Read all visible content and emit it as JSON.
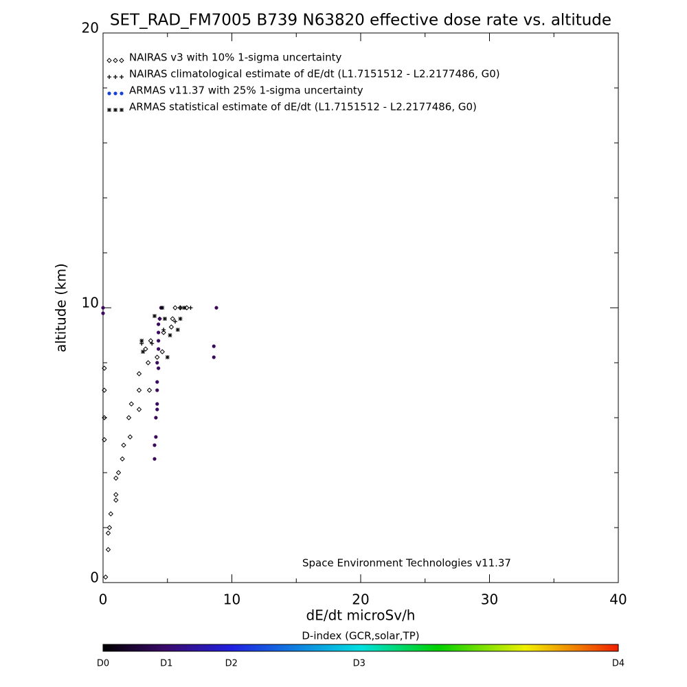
{
  "chart_data": {
    "type": "scatter",
    "title": "SET_RAD_FM7005  B739 N63820 effective dose rate vs. altitude",
    "x_label": "dE/dt microSv/h",
    "y_label": "altitude (km)",
    "annotation": "Space Environment Technologies v11.37",
    "xlim": [
      0,
      40
    ],
    "ylim": [
      0,
      20
    ],
    "xticks": [
      0,
      10,
      20,
      30,
      40
    ],
    "yticks": [
      0,
      10,
      20
    ],
    "xminorticks": [
      5,
      15,
      25,
      35
    ],
    "yminorticks": [
      2,
      4,
      6,
      8,
      12,
      14,
      16,
      18
    ],
    "series": [
      {
        "name": "NAIRAS v3 with 10% 1-sigma uncertainty",
        "marker": "diamond",
        "color": "#000000",
        "legend_color": "#000000",
        "x": [
          0.1,
          0.1,
          0.1,
          0.1,
          0.2,
          0.4,
          0.4,
          0.5,
          0.6,
          1.0,
          1.0,
          1.0,
          1.2,
          1.5,
          1.6,
          2.1,
          2.0,
          2.2,
          2.8,
          2.8,
          3.6,
          2.8,
          3.5,
          3.3,
          4.2,
          4.6,
          3.7,
          4.7,
          5.3,
          5.4,
          5.6,
          6.0,
          6.5
        ],
        "y": [
          7.8,
          7.0,
          6.0,
          5.2,
          0.2,
          1.2,
          1.8,
          2.0,
          2.5,
          3.0,
          3.2,
          3.8,
          4.0,
          4.5,
          5.0,
          5.3,
          6.0,
          6.5,
          6.3,
          7.0,
          7.0,
          7.6,
          8.0,
          8.5,
          8.2,
          8.4,
          8.8,
          9.1,
          9.3,
          9.6,
          10.0,
          10.0,
          10.0
        ]
      },
      {
        "name": "NAIRAS climatological estimate of dE/dt (L1.7151512 - L2.2177486, G0)",
        "marker": "plus",
        "color": "#000000",
        "legend_color": "#000000",
        "x": [
          3.0,
          3.8,
          4.4,
          4.7,
          5.6,
          6.0,
          6.8
        ],
        "y": [
          8.7,
          8.7,
          9.6,
          9.2,
          9.5,
          10.0,
          10.0
        ]
      },
      {
        "name": "ARMAS v11.37 with 25% 1-sigma uncertainty",
        "marker": "dot",
        "color": "#3a0a5a",
        "legend_color": "#1a3fd6",
        "x": [
          0.0,
          0.0,
          4.0,
          4.0,
          4.1,
          4.1,
          4.2,
          4.2,
          4.2,
          4.2,
          4.3,
          4.2,
          4.3,
          4.3,
          4.3,
          4.3,
          4.4,
          4.5,
          8.6,
          8.6,
          8.8
        ],
        "y": [
          9.8,
          10.0,
          4.5,
          5.0,
          5.3,
          6.0,
          6.3,
          6.5,
          7.0,
          7.3,
          7.8,
          8.0,
          8.5,
          8.8,
          9.1,
          9.4,
          9.6,
          10.0,
          8.2,
          8.6,
          10.0
        ]
      },
      {
        "name": "ARMAS statistical estimate of dE/dt (L1.7151512 - L2.2177486, G0)",
        "marker": "star",
        "color": "#000000",
        "legend_color": "#000000",
        "x": [
          3.0,
          3.1,
          4.0,
          4.8,
          5.2,
          5.0,
          5.8,
          6.0,
          6.3,
          4.6
        ],
        "y": [
          8.8,
          8.4,
          9.7,
          9.6,
          9.0,
          8.2,
          9.2,
          9.6,
          10.0,
          10.0
        ]
      }
    ],
    "colorbar": {
      "title": "D-index (GCR,solar,TP)",
      "labels": [
        "D0",
        "D1",
        "D2",
        "D3",
        "D4"
      ]
    }
  }
}
